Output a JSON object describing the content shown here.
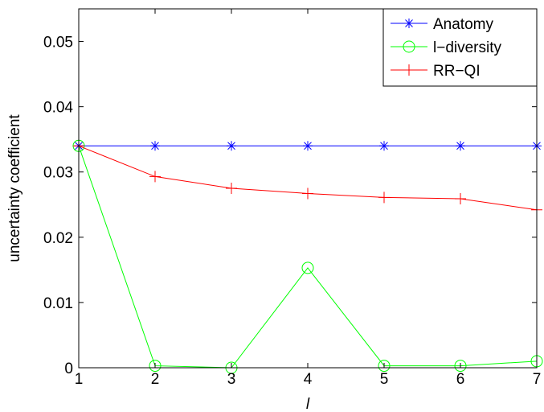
{
  "chart_data": {
    "type": "line",
    "xlabel": "l",
    "ylabel": "uncertainty coefficient",
    "x": [
      1,
      2,
      3,
      4,
      5,
      6,
      7
    ],
    "xlim": [
      1,
      7
    ],
    "ylim": [
      0,
      0.055
    ],
    "xticks": [
      1,
      2,
      3,
      4,
      5,
      6,
      7
    ],
    "yticks": [
      0,
      0.01,
      0.02,
      0.03,
      0.04,
      0.05
    ],
    "ytick_labels": [
      "0",
      "0.01",
      "0.02",
      "0.03",
      "0.04",
      "0.05"
    ],
    "grid": false,
    "legend_position": "top-right",
    "series": [
      {
        "name": "Anatomy",
        "color": "#0000ff",
        "marker": "asterisk",
        "values": [
          0.034,
          0.034,
          0.034,
          0.034,
          0.034,
          0.034,
          0.034
        ]
      },
      {
        "name": "l−diversity",
        "color": "#00ff00",
        "marker": "circle",
        "values": [
          0.034,
          0.0003,
          0.0,
          0.0153,
          0.0003,
          0.0003,
          0.001
        ]
      },
      {
        "name": "RR−QI",
        "color": "#ff0000",
        "marker": "plus",
        "values": [
          0.034,
          0.0293,
          0.0275,
          0.0267,
          0.0261,
          0.0259,
          0.0242
        ]
      }
    ]
  }
}
